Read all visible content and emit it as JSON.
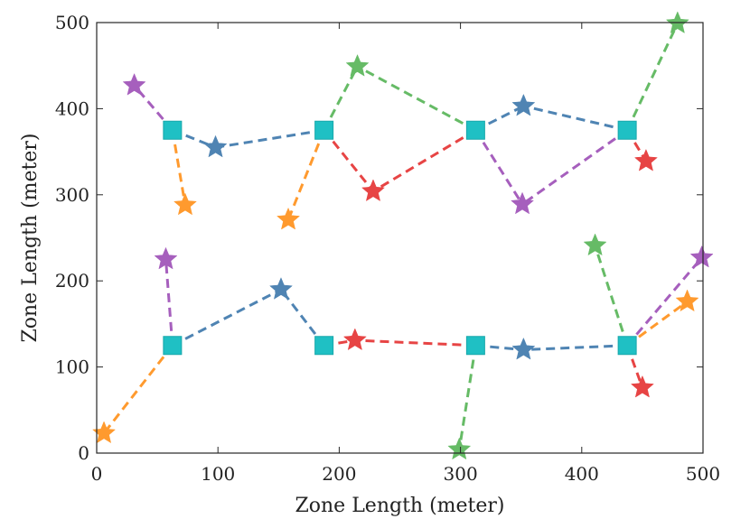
{
  "chart_data": {
    "type": "scatter",
    "title": "",
    "xlabel": "Zone Length (meter)",
    "ylabel": "Zone Length (meter)",
    "xlim": [
      0,
      500
    ],
    "ylim": [
      0,
      500
    ],
    "xticks": [
      0,
      100,
      200,
      300,
      400,
      500
    ],
    "yticks": [
      0,
      100,
      200,
      300,
      400,
      500
    ],
    "grid": false,
    "legend": "none",
    "hubs": {
      "name": "zone hubs",
      "marker": "square",
      "color": "#1fc0c4",
      "points": [
        [
          62.5,
          375
        ],
        [
          187.5,
          375
        ],
        [
          312.5,
          375
        ],
        [
          437.5,
          375
        ],
        [
          62.5,
          125
        ],
        [
          187.5,
          125
        ],
        [
          312.5,
          125
        ],
        [
          437.5,
          125
        ]
      ]
    },
    "series": [
      {
        "name": "orange",
        "color": "#ff9a2e",
        "segments": [
          {
            "hub": [
              62.5,
              375
            ],
            "node": [
              73,
              288
            ]
          },
          {
            "hub": [
              187.5,
              375
            ],
            "node": [
              158,
              271
            ]
          },
          {
            "hub": [
              62.5,
              125
            ],
            "node": [
              6,
              23
            ]
          },
          {
            "hub": [
              437.5,
              125
            ],
            "node": [
              487,
              176
            ]
          }
        ]
      },
      {
        "name": "blue",
        "color": "#4f84b3",
        "segments": [
          {
            "hub": [
              62.5,
              375
            ],
            "node": [
              98,
              355
            ]
          },
          {
            "hub": [
              187.5,
              375
            ],
            "node": [
              98,
              355
            ]
          },
          {
            "hub": [
              312.5,
              375
            ],
            "node": [
              352,
              403
            ]
          },
          {
            "hub": [
              437.5,
              375
            ],
            "node": [
              352,
              403
            ]
          },
          {
            "hub": [
              62.5,
              125
            ],
            "node": [
              152,
              190
            ]
          },
          {
            "hub": [
              187.5,
              125
            ],
            "node": [
              152,
              190
            ]
          },
          {
            "hub": [
              312.5,
              125
            ],
            "node": [
              352,
              120
            ]
          },
          {
            "hub": [
              437.5,
              125
            ],
            "node": [
              352,
              120
            ]
          }
        ]
      },
      {
        "name": "green",
        "color": "#66bb66",
        "segments": [
          {
            "hub": [
              187.5,
              375
            ],
            "node": [
              215,
              449
            ]
          },
          {
            "hub": [
              312.5,
              375
            ],
            "node": [
              215,
              449
            ]
          },
          {
            "hub": [
              437.5,
              375
            ],
            "node": [
              479,
              499
            ]
          },
          {
            "hub": [
              312.5,
              125
            ],
            "node": [
              299,
              4
            ]
          },
          {
            "hub": [
              437.5,
              125
            ],
            "node": [
              411,
              241
            ]
          }
        ]
      },
      {
        "name": "red",
        "color": "#e74444",
        "segments": [
          {
            "hub": [
              187.5,
              375
            ],
            "node": [
              228,
              304
            ]
          },
          {
            "hub": [
              312.5,
              375
            ],
            "node": [
              228,
              304
            ]
          },
          {
            "hub": [
              437.5,
              375
            ],
            "node": [
              453,
              339
            ]
          },
          {
            "hub": [
              187.5,
              125
            ],
            "node": [
              213,
              131
            ]
          },
          {
            "hub": [
              312.5,
              125
            ],
            "node": [
              213,
              131
            ]
          },
          {
            "hub": [
              437.5,
              125
            ],
            "node": [
              450,
              76
            ]
          }
        ]
      },
      {
        "name": "purple",
        "color": "#a65fbd",
        "segments": [
          {
            "hub": [
              62.5,
              375
            ],
            "node": [
              31,
              427
            ]
          },
          {
            "hub": [
              312.5,
              375
            ],
            "node": [
              351,
              289
            ]
          },
          {
            "hub": [
              437.5,
              375
            ],
            "node": [
              351,
              289
            ]
          },
          {
            "hub": [
              62.5,
              125
            ],
            "node": [
              57,
              225
            ]
          },
          {
            "hub": [
              437.5,
              125
            ],
            "node": [
              499,
              227
            ]
          }
        ]
      }
    ]
  }
}
